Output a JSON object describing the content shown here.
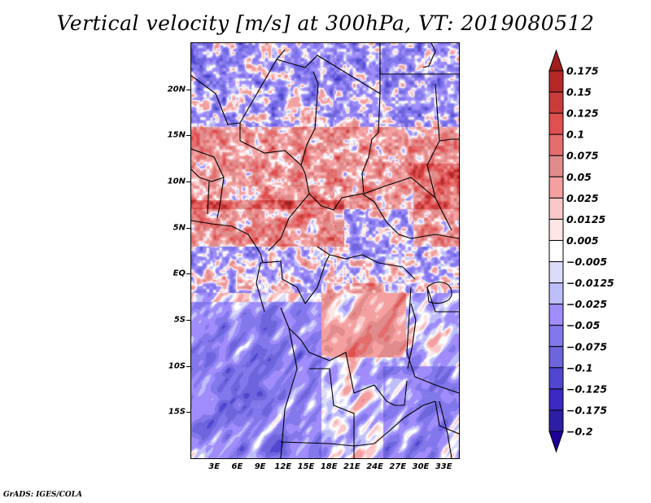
{
  "chart_data": {
    "type": "heatmap",
    "title": "Vertical velocity [m/s] at 300hPa, VT: 2019080512",
    "variable": "Vertical velocity",
    "units": "m/s",
    "level": "300hPa",
    "valid_time": "2019080512",
    "xlabel": "",
    "ylabel": "",
    "xlim": [
      0,
      35
    ],
    "ylim": [
      -20,
      25
    ],
    "x_ticks": [
      {
        "value": 3,
        "label": "3E"
      },
      {
        "value": 6,
        "label": "6E"
      },
      {
        "value": 9,
        "label": "9E"
      },
      {
        "value": 12,
        "label": "12E"
      },
      {
        "value": 15,
        "label": "15E"
      },
      {
        "value": 18,
        "label": "18E"
      },
      {
        "value": 21,
        "label": "21E"
      },
      {
        "value": 24,
        "label": "24E"
      },
      {
        "value": 27,
        "label": "27E"
      },
      {
        "value": 30,
        "label": "30E"
      },
      {
        "value": 33,
        "label": "33E"
      }
    ],
    "y_ticks": [
      {
        "value": 20,
        "label": "20N"
      },
      {
        "value": 15,
        "label": "15N"
      },
      {
        "value": 10,
        "label": "10N"
      },
      {
        "value": 5,
        "label": "5N"
      },
      {
        "value": 0,
        "label": "EQ"
      },
      {
        "value": -5,
        "label": "5S"
      },
      {
        "value": -10,
        "label": "10S"
      },
      {
        "value": -15,
        "label": "15S"
      }
    ],
    "colorbar": {
      "labels": [
        "0.175",
        "0.15",
        "0.125",
        "0.1",
        "0.075",
        "0.05",
        "0.025",
        "0.0125",
        "0.005",
        "−0.005",
        "−0.0125",
        "−0.025",
        "−0.05",
        "−0.075",
        "−0.1",
        "−0.125",
        "−0.175",
        "−0.2"
      ],
      "levels": [
        0.175,
        0.15,
        0.125,
        0.1,
        0.075,
        0.05,
        0.025,
        0.0125,
        0.005,
        -0.005,
        -0.0125,
        -0.025,
        -0.05,
        -0.075,
        -0.1,
        -0.125,
        -0.175,
        -0.2
      ],
      "colors": [
        "#a01e1e",
        "#b42828",
        "#c83c3c",
        "#e05050",
        "#e46e6e",
        "#e08c8c",
        "#f4a0a0",
        "#fac8c8",
        "#fee6e6",
        "#ffffff",
        "#dcdcfa",
        "#bebefa",
        "#a08cfa",
        "#8278eb",
        "#6e64dc",
        "#5046d2",
        "#3c28c3",
        "#2d1ea5",
        "#1e0096"
      ],
      "extend": "both",
      "orientation": "vertical",
      "placement": "right"
    },
    "field_summary": {
      "positive_regions": [
        "Sahel belt 8N-15N",
        "Gulf of Guinea coast ~5N",
        "Central Africa 0-8S 18E-27E",
        "Ethiopian highlands east edge"
      ],
      "negative_regions": [
        "Southern Atlantic / Angola 5S-20S",
        "Sahara north of 17N",
        "Zambia / Mozambique south-east"
      ]
    }
  },
  "footer": {
    "credit": "GrADS: IGES/COLA"
  }
}
